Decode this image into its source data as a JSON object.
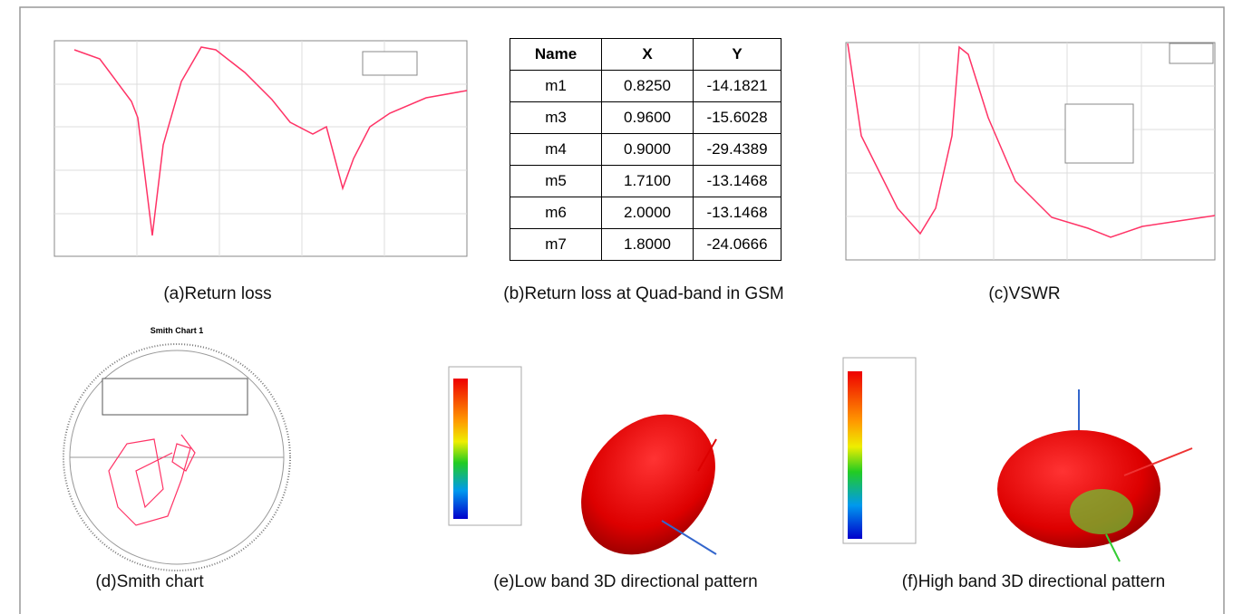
{
  "panels": [
    {
      "caption": "(a)Return loss"
    },
    {
      "caption": "(b)Return loss at Quad-band in GSM"
    },
    {
      "caption": "(c)VSWR"
    },
    {
      "caption": "(d)Smith chart",
      "title": "Smith Chart 1"
    },
    {
      "caption": "(e)Low band 3D directional pattern"
    },
    {
      "caption": "(f)High band 3D directional pattern"
    }
  ],
  "table": {
    "header": [
      "Name",
      "X",
      "Y"
    ],
    "rows": [
      [
        "m1",
        "0.8250",
        "-14.1821"
      ],
      [
        "m3",
        "0.9600",
        "-15.6028"
      ],
      [
        "m4",
        "0.9000",
        "-29.4389"
      ],
      [
        "m5",
        "1.7100",
        "-13.1468"
      ],
      [
        "m6",
        "2.0000",
        "-13.1468"
      ],
      [
        "m7",
        "1.8000",
        "-24.0666"
      ]
    ]
  }
}
